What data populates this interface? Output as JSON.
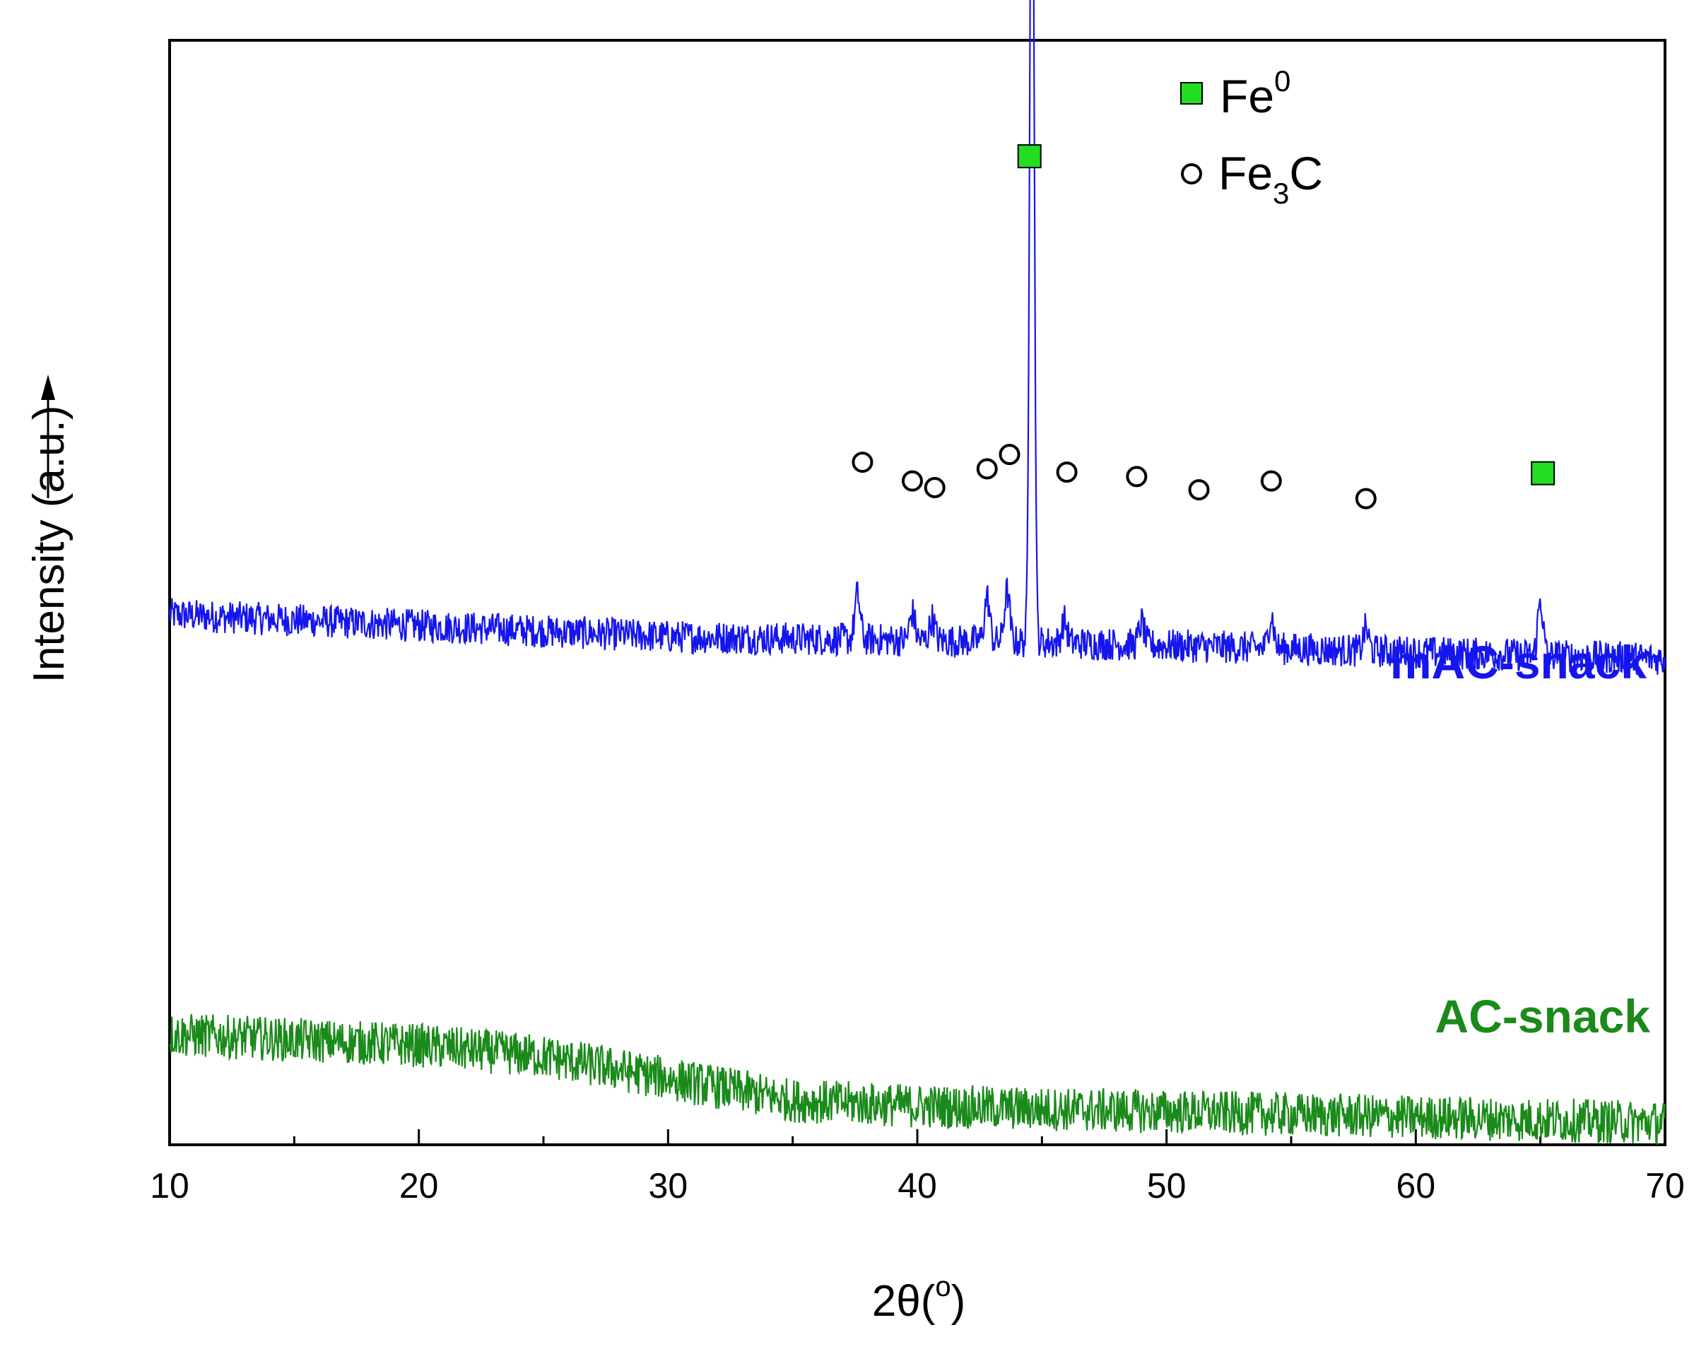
{
  "chart_data": {
    "type": "line",
    "xlabel": "2θ(",
    "xlabel_degree": "o",
    "xlabel_close": ")",
    "ylabel": "Intensity (a.u.)",
    "xlim": [
      10,
      70
    ],
    "x_ticks": [
      10,
      20,
      30,
      40,
      50,
      60,
      70
    ],
    "x_tick_labels": [
      "10",
      "20",
      "30",
      "40",
      "50",
      "60",
      "70"
    ],
    "y_tick_labels": [],
    "grid": false,
    "legend_position": "top-right",
    "legend": [
      {
        "marker": "square",
        "label": "Fe",
        "superscript": "0",
        "color": "#22dd22"
      },
      {
        "marker": "circle",
        "label": "Fe",
        "subscript": "3",
        "suffix": "C",
        "color": "#000000"
      }
    ],
    "series": [
      {
        "name": "mAC-snack",
        "color": "#1515ee",
        "baseline": [
          [
            10,
            0.48
          ],
          [
            30,
            0.46
          ],
          [
            45,
            0.455
          ],
          [
            70,
            0.44
          ]
        ],
        "noise": 0.015,
        "peaks": [
          {
            "x": 37.6,
            "height": 0.04
          },
          {
            "x": 39.8,
            "height": 0.025
          },
          {
            "x": 40.6,
            "height": 0.02
          },
          {
            "x": 42.8,
            "height": 0.04
          },
          {
            "x": 43.6,
            "height": 0.045
          },
          {
            "x": 44.6,
            "height": 0.88
          },
          {
            "x": 45.9,
            "height": 0.02
          },
          {
            "x": 49.0,
            "height": 0.02
          },
          {
            "x": 54.2,
            "height": 0.03
          },
          {
            "x": 58.0,
            "height": 0.02
          },
          {
            "x": 65.0,
            "height": 0.05
          }
        ]
      },
      {
        "name": "AC-snack",
        "color": "#1a8a1a",
        "baseline": [
          [
            10,
            0.1
          ],
          [
            20,
            0.09
          ],
          [
            25,
            0.08
          ],
          [
            30,
            0.06
          ],
          [
            35,
            0.04
          ],
          [
            40,
            0.035
          ],
          [
            50,
            0.03
          ],
          [
            60,
            0.025
          ],
          [
            70,
            0.02
          ]
        ],
        "noise": 0.02,
        "peaks": []
      }
    ],
    "annotations": {
      "fe0_markers_x": [
        44.5,
        65.1
      ],
      "fe3c_markers_x": [
        37.8,
        39.8,
        40.7,
        42.8,
        43.7,
        46.0,
        48.8,
        51.3,
        54.2,
        58.0
      ]
    }
  }
}
